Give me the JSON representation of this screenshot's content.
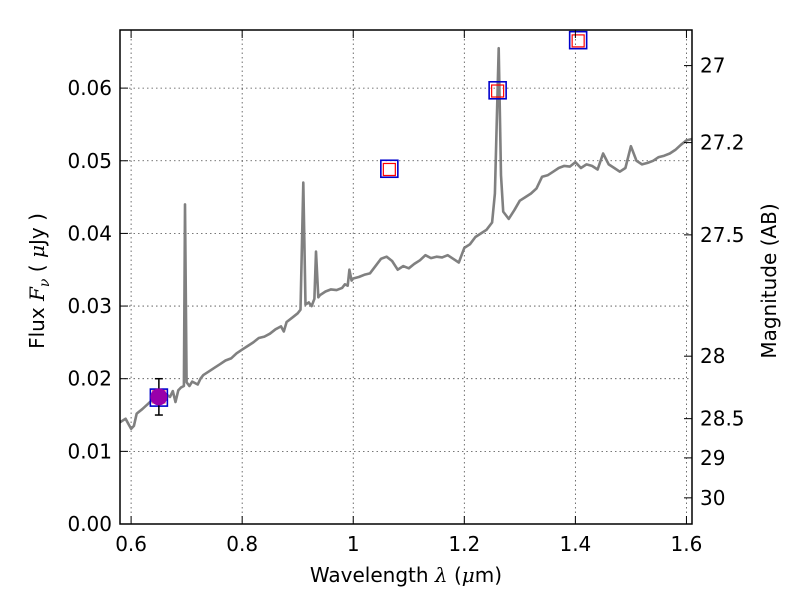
{
  "chart_data": {
    "type": "line",
    "xlabel": {
      "prefix": "Wavelength",
      "symbol": "λ",
      "unit_open": "(",
      "unit_mu": "μ",
      "unit_rest": "m)"
    },
    "ylabel": {
      "prefix": "Flux",
      "symbol": "F",
      "subscript": "ν",
      "unit_open": "(",
      "unit_mu": "μ",
      "unit_rest": "Jy )"
    },
    "y2label": "Magnitude (AB)",
    "xlim": [
      0.58,
      1.61
    ],
    "ylim": [
      0.0,
      0.068
    ],
    "grid": true,
    "x_ticks": [
      {
        "value": 0.6,
        "label": "0.6"
      },
      {
        "value": 0.8,
        "label": "0.8"
      },
      {
        "value": 1.0,
        "label": "1"
      },
      {
        "value": 1.2,
        "label": "1.2"
      },
      {
        "value": 1.4,
        "label": "1.4"
      },
      {
        "value": 1.6,
        "label": "1.6"
      }
    ],
    "y_ticks": [
      {
        "value": 0.0,
        "label": "0.00"
      },
      {
        "value": 0.01,
        "label": "0.01"
      },
      {
        "value": 0.02,
        "label": "0.02"
      },
      {
        "value": 0.03,
        "label": "0.03"
      },
      {
        "value": 0.04,
        "label": "0.04"
      },
      {
        "value": 0.05,
        "label": "0.05"
      },
      {
        "value": 0.06,
        "label": "0.06"
      }
    ],
    "y2_ticks": [
      {
        "label": "27",
        "flux": 0.0631
      },
      {
        "label": "27.2",
        "flux": 0.0525
      },
      {
        "label": "27.5",
        "flux": 0.0398
      },
      {
        "label": "28",
        "flux": 0.0231
      },
      {
        "label": "28.5",
        "flux": 0.0145
      },
      {
        "label": "29",
        "flux": 0.0091
      },
      {
        "label": "30",
        "flux": 0.0036
      }
    ],
    "series": [
      {
        "kind": "spectrum",
        "color": "#808080",
        "points": [
          [
            0.58,
            0.014
          ],
          [
            0.59,
            0.0145
          ],
          [
            0.595,
            0.0138
          ],
          [
            0.6,
            0.0131
          ],
          [
            0.605,
            0.0135
          ],
          [
            0.61,
            0.0152
          ],
          [
            0.62,
            0.0158
          ],
          [
            0.63,
            0.0165
          ],
          [
            0.64,
            0.0172
          ],
          [
            0.65,
            0.017
          ],
          [
            0.66,
            0.018
          ],
          [
            0.67,
            0.0175
          ],
          [
            0.675,
            0.0183
          ],
          [
            0.68,
            0.0168
          ],
          [
            0.685,
            0.0184
          ],
          [
            0.69,
            0.0188
          ],
          [
            0.695,
            0.019
          ],
          [
            0.697,
            0.044
          ],
          [
            0.7,
            0.0195
          ],
          [
            0.705,
            0.019
          ],
          [
            0.71,
            0.0196
          ],
          [
            0.72,
            0.0192
          ],
          [
            0.725,
            0.02
          ],
          [
            0.73,
            0.0205
          ],
          [
            0.74,
            0.021
          ],
          [
            0.75,
            0.0215
          ],
          [
            0.76,
            0.022
          ],
          [
            0.77,
            0.0225
          ],
          [
            0.78,
            0.0228
          ],
          [
            0.79,
            0.0235
          ],
          [
            0.8,
            0.024
          ],
          [
            0.81,
            0.0245
          ],
          [
            0.82,
            0.025
          ],
          [
            0.83,
            0.0256
          ],
          [
            0.84,
            0.0258
          ],
          [
            0.85,
            0.0262
          ],
          [
            0.86,
            0.0268
          ],
          [
            0.87,
            0.0272
          ],
          [
            0.875,
            0.0265
          ],
          [
            0.88,
            0.0278
          ],
          [
            0.89,
            0.0284
          ],
          [
            0.9,
            0.029
          ],
          [
            0.905,
            0.0295
          ],
          [
            0.91,
            0.047
          ],
          [
            0.914,
            0.0302
          ],
          [
            0.92,
            0.0305
          ],
          [
            0.925,
            0.03
          ],
          [
            0.93,
            0.031
          ],
          [
            0.933,
            0.0375
          ],
          [
            0.937,
            0.0312
          ],
          [
            0.94,
            0.0315
          ],
          [
            0.95,
            0.032
          ],
          [
            0.96,
            0.0323
          ],
          [
            0.97,
            0.0322
          ],
          [
            0.98,
            0.0325
          ],
          [
            0.985,
            0.033
          ],
          [
            0.99,
            0.0328
          ],
          [
            0.993,
            0.035
          ],
          [
            0.997,
            0.0335
          ],
          [
            1.0,
            0.0338
          ],
          [
            1.01,
            0.034
          ],
          [
            1.02,
            0.0343
          ],
          [
            1.03,
            0.0345
          ],
          [
            1.04,
            0.0355
          ],
          [
            1.05,
            0.0365
          ],
          [
            1.06,
            0.0368
          ],
          [
            1.07,
            0.0362
          ],
          [
            1.08,
            0.035
          ],
          [
            1.09,
            0.0355
          ],
          [
            1.1,
            0.0352
          ],
          [
            1.11,
            0.0358
          ],
          [
            1.12,
            0.0363
          ],
          [
            1.13,
            0.037
          ],
          [
            1.14,
            0.0366
          ],
          [
            1.15,
            0.0368
          ],
          [
            1.16,
            0.0367
          ],
          [
            1.17,
            0.037
          ],
          [
            1.18,
            0.0365
          ],
          [
            1.19,
            0.036
          ],
          [
            1.2,
            0.038
          ],
          [
            1.21,
            0.0385
          ],
          [
            1.22,
            0.0395
          ],
          [
            1.23,
            0.04
          ],
          [
            1.24,
            0.0405
          ],
          [
            1.25,
            0.0415
          ],
          [
            1.255,
            0.0455
          ],
          [
            1.258,
            0.054
          ],
          [
            1.262,
            0.0655
          ],
          [
            1.266,
            0.048
          ],
          [
            1.27,
            0.043
          ],
          [
            1.28,
            0.042
          ],
          [
            1.29,
            0.0432
          ],
          [
            1.3,
            0.0445
          ],
          [
            1.31,
            0.045
          ],
          [
            1.32,
            0.0455
          ],
          [
            1.33,
            0.0462
          ],
          [
            1.34,
            0.0478
          ],
          [
            1.35,
            0.048
          ],
          [
            1.36,
            0.0485
          ],
          [
            1.37,
            0.049
          ],
          [
            1.38,
            0.0493
          ],
          [
            1.39,
            0.0492
          ],
          [
            1.4,
            0.0498
          ],
          [
            1.41,
            0.049
          ],
          [
            1.42,
            0.0495
          ],
          [
            1.43,
            0.0493
          ],
          [
            1.44,
            0.0488
          ],
          [
            1.45,
            0.051
          ],
          [
            1.46,
            0.0495
          ],
          [
            1.47,
            0.049
          ],
          [
            1.48,
            0.0485
          ],
          [
            1.49,
            0.049
          ],
          [
            1.5,
            0.052
          ],
          [
            1.51,
            0.05
          ],
          [
            1.52,
            0.0495
          ],
          [
            1.53,
            0.0497
          ],
          [
            1.54,
            0.05
          ],
          [
            1.55,
            0.0505
          ],
          [
            1.56,
            0.0507
          ],
          [
            1.57,
            0.051
          ],
          [
            1.58,
            0.0515
          ],
          [
            1.59,
            0.0522
          ],
          [
            1.6,
            0.0528
          ],
          [
            1.61,
            0.053
          ]
        ]
      },
      {
        "kind": "model_photometry",
        "color": "#0000cc",
        "points": [
          [
            0.65,
            0.0174
          ],
          [
            1.065,
            0.0489
          ],
          [
            1.26,
            0.0597
          ],
          [
            1.405,
            0.0666
          ]
        ]
      },
      {
        "kind": "synthetic_photometry",
        "color": "#ff0000",
        "points": [
          [
            0.65,
            0.0175
          ],
          [
            1.065,
            0.0488
          ],
          [
            1.26,
            0.0596
          ],
          [
            1.405,
            0.0665
          ]
        ]
      },
      {
        "kind": "observed",
        "color": "#9900aa",
        "points": [
          {
            "x": 0.65,
            "y": 0.0175,
            "err": 0.0025
          }
        ]
      }
    ]
  }
}
